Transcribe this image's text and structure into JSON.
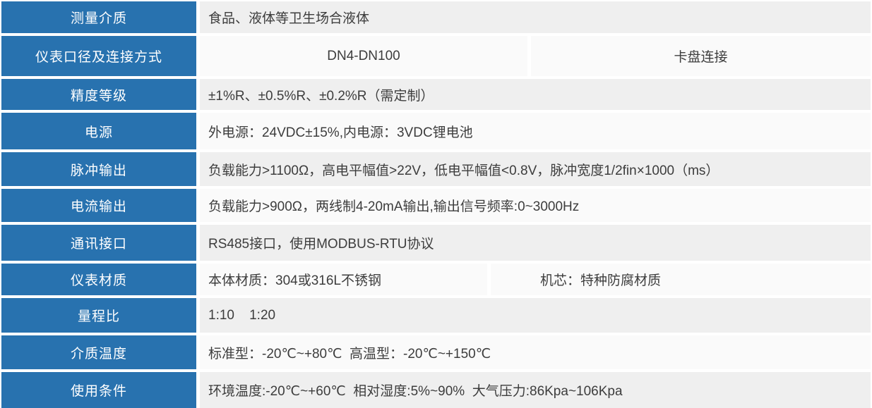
{
  "colors": {
    "header_bg": "#2872af",
    "label_text": "#ffffff",
    "row_odd_bg": "#efefef",
    "row_even_bg": "#fafafa",
    "text": "#3d3d3d"
  },
  "table": {
    "rows": [
      {
        "label": "测量介质",
        "cells": [
          {
            "text": "食品、液体等卫生场合液体"
          }
        ]
      },
      {
        "label": "仪表口径及连接方式",
        "cells": [
          {
            "text": "DN4-DN100"
          },
          {
            "text": "卡盘连接"
          }
        ]
      },
      {
        "label": "精度等级",
        "cells": [
          {
            "text": "±1%R、±0.5%R、±0.2%R（需定制）"
          }
        ]
      },
      {
        "label": "电源",
        "cells": [
          {
            "text": "外电源：24VDC±15%,内电源：3VDC锂电池"
          }
        ]
      },
      {
        "label": "脉冲输出",
        "cells": [
          {
            "text": "负载能力>1100Ω，高电平幅值>22V，低电平幅值<0.8V，脉冲宽度1/2fin×1000（ms）"
          }
        ]
      },
      {
        "label": "电流输出",
        "cells": [
          {
            "text": "负载能力>900Ω，两线制4-20mA输出,输出信号频率:0~3000Hz"
          }
        ]
      },
      {
        "label": "通讯接口",
        "cells": [
          {
            "text": "RS485接口，使用MODBUS-RTU协议"
          }
        ]
      },
      {
        "label": "仪表材质",
        "cells": [
          {
            "text": "本体材质：304或316L不锈钢"
          },
          {
            "text": "机芯：特种防腐材质"
          }
        ]
      },
      {
        "label": "量程比",
        "cells": [
          {
            "text": "1:10    1:20"
          }
        ]
      },
      {
        "label": "介质温度",
        "cells": [
          {
            "text": "标准型：-20℃~+80℃  高温型：-20℃~+150℃"
          }
        ]
      },
      {
        "label": "使用条件",
        "cells": [
          {
            "text": "环境温度:-20℃~+60℃  相对湿度:5%~90%  大气压力:86Kpa~106Kpa"
          }
        ]
      }
    ]
  }
}
